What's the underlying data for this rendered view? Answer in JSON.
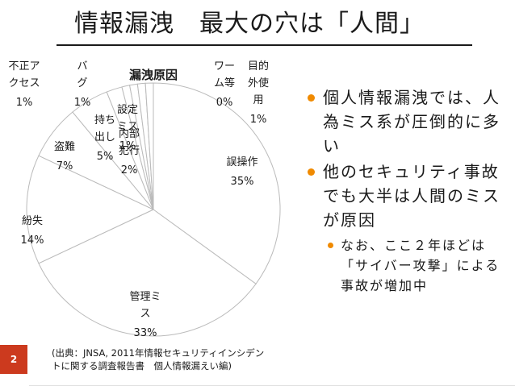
{
  "slide": {
    "title": "情報漏洩　最大の穴は「人間」",
    "page_number": "2",
    "source": "(出典：JNSA, 2011年情報セキュリティインシデントに関する調査報告書　個人情報漏えい編)"
  },
  "chart_data": {
    "type": "pie",
    "title": "漏洩原因",
    "categories": [
      "誤操作",
      "管理ミス",
      "紛失",
      "盗難",
      "持ち出し",
      "内部犯行",
      "設定ミス",
      "不正アクセス",
      "バグ",
      "ワーム等",
      "目的外使用"
    ],
    "values": [
      35,
      33,
      14,
      7,
      5,
      2,
      1,
      1,
      1,
      0,
      1
    ],
    "value_labels": [
      "35%",
      "33%",
      "14%",
      "7%",
      "5%",
      "2%",
      "1%",
      "1%",
      "1%",
      "0%",
      "1%"
    ],
    "legend": "none"
  },
  "bullets": [
    "個人情報漏洩では、人為ミス系が圧倒的に多い",
    "他のセキュリティ事故でも大半は人間のミスが原因"
  ],
  "sub_bullets": [
    "なお、ここ２年ほどは「サイバー攻撃」による事故が増加中"
  ],
  "colors": {
    "accent": "#f08a00",
    "page_badge": "#cc3a1e",
    "pie_fill": "#ffffff",
    "pie_stroke": "#bbbbbb"
  }
}
